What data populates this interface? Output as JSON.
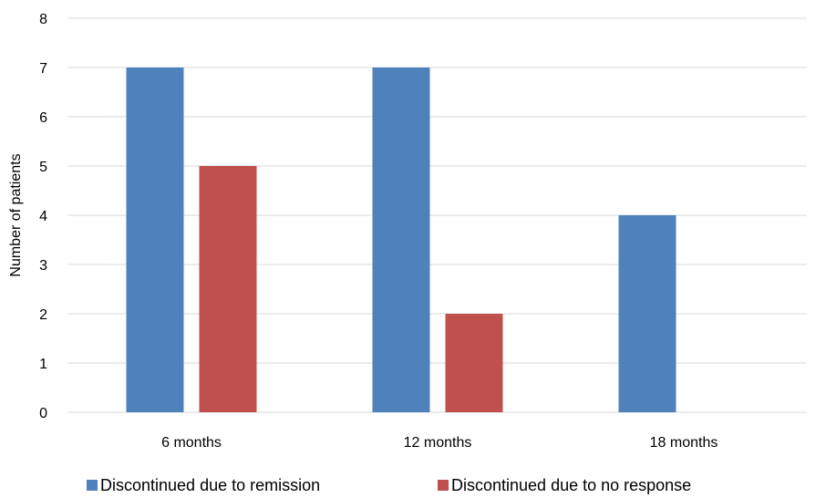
{
  "chart_data": {
    "type": "bar",
    "title": "",
    "xlabel": "",
    "ylabel": "Number of patients",
    "ylim": [
      0,
      8
    ],
    "yticks": [
      0,
      1,
      2,
      3,
      4,
      5,
      6,
      7,
      8
    ],
    "grid": true,
    "legend_position": "bottom",
    "categories": [
      "6 months",
      "12 months",
      "18 months"
    ],
    "series": [
      {
        "name": "Discontinued due to remission",
        "color": "#4f81bd",
        "values": [
          7,
          7,
          4
        ]
      },
      {
        "name": "Discontinued due to no response",
        "color": "#c0504d",
        "values": [
          5,
          2,
          0
        ]
      }
    ]
  }
}
